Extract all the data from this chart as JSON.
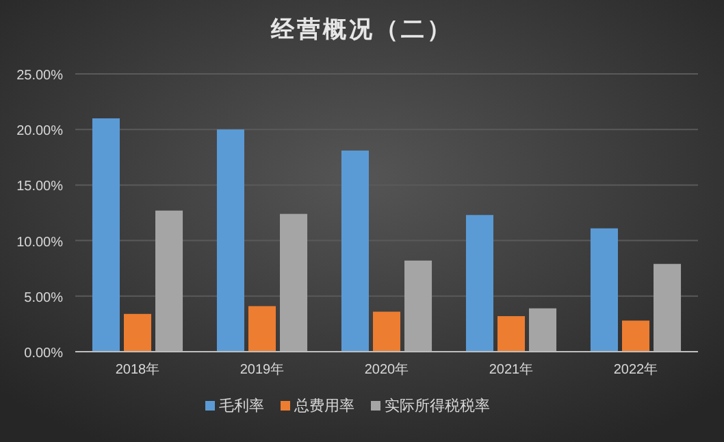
{
  "chart_data": {
    "type": "bar",
    "title": "经营概况（二）",
    "categories": [
      "2018年",
      "2019年",
      "2020年",
      "2021年",
      "2022年"
    ],
    "series": [
      {
        "name": "毛利率",
        "color": "#5b9bd5",
        "values": [
          21.0,
          20.0,
          18.1,
          12.3,
          11.1
        ]
      },
      {
        "name": "总费用率",
        "color": "#ed7d31",
        "values": [
          3.4,
          4.1,
          3.6,
          3.2,
          2.8
        ]
      },
      {
        "name": "实际所得税税率",
        "color": "#a5a5a5",
        "values": [
          12.7,
          12.4,
          8.2,
          3.9,
          7.9
        ]
      }
    ],
    "ylim": [
      0,
      25
    ],
    "yticks": [
      {
        "value": 0,
        "label": "0.00%"
      },
      {
        "value": 5,
        "label": "5.00%"
      },
      {
        "value": 10,
        "label": "10.00%"
      },
      {
        "value": 15,
        "label": "15.00%"
      },
      {
        "value": 20,
        "label": "20.00%"
      },
      {
        "value": 25,
        "label": "25.00%"
      }
    ],
    "grid": "y",
    "legend": "bottom"
  }
}
